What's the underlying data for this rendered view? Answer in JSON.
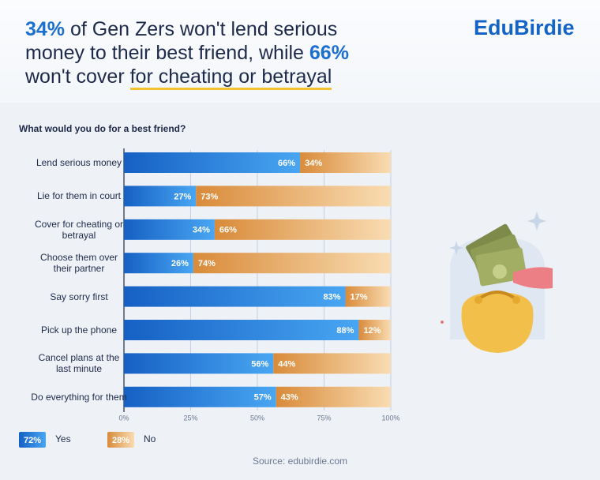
{
  "brand": "EduBirdie",
  "headline": [
    "34%",
    " of Gen Zers won't lend serious money to their best friend, while ",
    "66%",
    " won't cover ",
    "for cheating or betrayal"
  ],
  "source": "Source: edubirdie.com",
  "chart_data": {
    "type": "stacked-bar-horizontal",
    "title": "What would you do for a best friend?",
    "categories": [
      "Lend serious money",
      "Lie for them in court",
      "Cover for cheating or betrayal",
      "Choose them over their partner",
      "Say sorry first",
      "Pick up the phone",
      "Cancel plans at the last minute",
      "Do everything for them"
    ],
    "series": [
      {
        "name": "Yes",
        "total_label": "72%",
        "color": "#1560c4",
        "color_end": "#49a6f2",
        "values": [
          66,
          27,
          34,
          26,
          83,
          88,
          56,
          57
        ],
        "value_labels": [
          "66%",
          "27%",
          "34%",
          "26%",
          "83%",
          "88%",
          "56%",
          "57%"
        ]
      },
      {
        "name": "No",
        "total_label": "28%",
        "color": "#d98b3a",
        "color_end": "#f9dcb2",
        "values": [
          34,
          73,
          66,
          74,
          17,
          12,
          44,
          43
        ],
        "value_labels": [
          "34%",
          "73%",
          "66%",
          "74%",
          "17%",
          "12%",
          "44%",
          "43%"
        ]
      }
    ],
    "xlim": [
      0,
      100
    ],
    "xticks": [
      {
        "value": 0,
        "label": "0%"
      },
      {
        "value": 25,
        "label": "25%"
      },
      {
        "value": 50,
        "label": "50%"
      },
      {
        "value": 75,
        "label": "75%"
      },
      {
        "value": 100,
        "label": "100%"
      }
    ]
  }
}
